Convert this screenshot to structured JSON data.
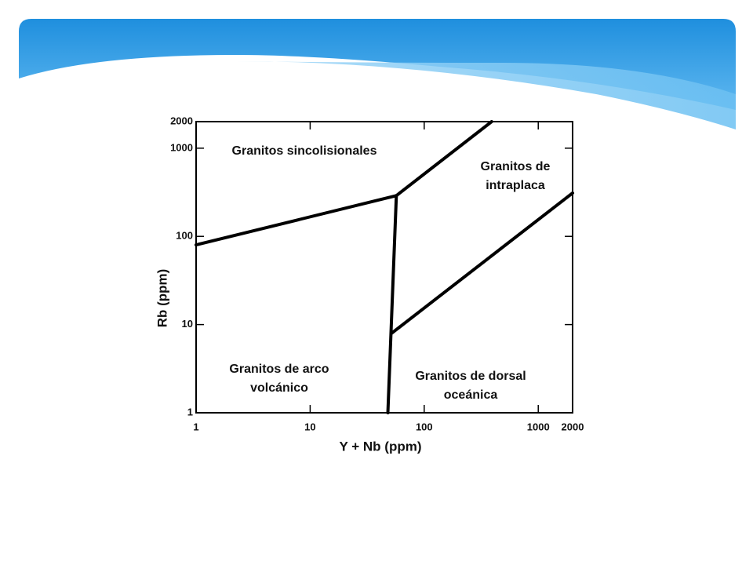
{
  "chart_data": {
    "type": "line",
    "x_label": "Y + Nb (ppm)",
    "y_label": "Rb (ppm)",
    "log_x": true,
    "log_y": true,
    "xlim": [
      1,
      2000
    ],
    "ylim": [
      1,
      2000
    ],
    "xticks": [
      1,
      10,
      100,
      1000,
      2000
    ],
    "yticks": [
      1,
      10,
      100,
      1000,
      2000
    ],
    "series": [
      {
        "color": "#000000",
        "x": [
          1,
          57
        ],
        "values": [
          80,
          290
        ]
      },
      {
        "color": "#000000",
        "x": [
          57,
          390
        ],
        "values": [
          290,
          2000
        ]
      },
      {
        "color": "#000000",
        "x": [
          48,
          57
        ],
        "values": [
          1,
          290
        ]
      },
      {
        "color": "#000000",
        "x": [
          52,
          2000
        ],
        "values": [
          8,
          310
        ]
      }
    ],
    "annotations": [
      [
        "Granitos sincolisionales"
      ],
      [
        "Granitos de",
        "intraplaca"
      ],
      [
        "Granitos de arco",
        "volcánico"
      ],
      [
        "Granitos de dorsal",
        "oceánica"
      ]
    ]
  }
}
